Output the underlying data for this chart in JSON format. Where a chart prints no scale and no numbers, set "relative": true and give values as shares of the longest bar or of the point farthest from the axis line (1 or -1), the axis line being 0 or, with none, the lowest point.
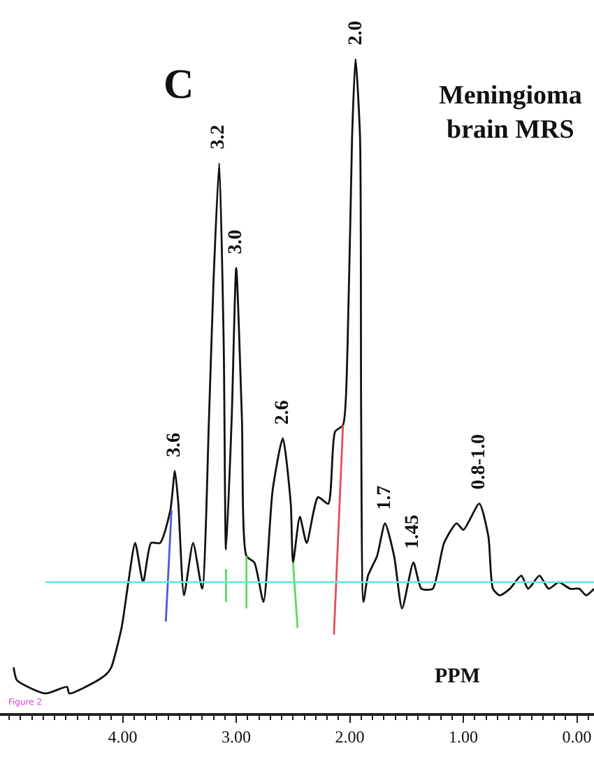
{
  "chart_data": {
    "type": "line",
    "relative": true,
    "title": "C",
    "xlabel": "PPM",
    "xlim": [
      5.08,
      -0.15
    ],
    "xticks": [
      {
        "value": 4,
        "label": "4.00"
      },
      {
        "value": 3,
        "label": "3.00"
      },
      {
        "value": 2,
        "label": "2.00"
      },
      {
        "value": 1,
        "label": "1.00"
      },
      {
        "value": 0,
        "label": "0.00"
      }
    ],
    "series": [
      {
        "color": "#111111",
        "x": [
          4.96,
          4.93,
          4.68,
          4.49,
          4.47,
          4.22,
          4.14,
          4.1,
          4.01,
          3.95,
          3.89,
          3.82,
          3.75,
          3.67,
          3.58,
          3.54,
          3.51,
          3.46,
          3.38,
          3.3,
          3.24,
          3.2,
          3.15,
          3.11,
          3.09,
          3.04,
          3.0,
          2.95,
          2.91,
          2.84,
          2.76,
          2.68,
          2.59,
          2.52,
          2.5,
          2.44,
          2.38,
          2.28,
          2.19,
          2.13,
          2.06,
          2.02,
          1.98,
          1.95,
          1.91,
          1.9,
          1.88,
          1.84,
          1.76,
          1.69,
          1.61,
          1.54,
          1.44,
          1.37,
          1.27,
          1.17,
          1.06,
          1.0,
          0.86,
          0.78,
          0.74,
          0.68,
          0.59,
          0.49,
          0.43,
          0.33,
          0.25,
          0.16,
          0.06,
          -0.02,
          -0.08,
          -0.15
        ],
        "values": [
          0.07,
          0.05,
          0.03,
          0.04,
          0.03,
          0.05,
          0.06,
          0.07,
          0.13,
          0.2,
          0.26,
          0.2,
          0.26,
          0.26,
          0.31,
          0.37,
          0.32,
          0.18,
          0.26,
          0.19,
          0.45,
          0.66,
          0.84,
          0.56,
          0.25,
          0.45,
          0.68,
          0.45,
          0.24,
          0.23,
          0.17,
          0.34,
          0.42,
          0.32,
          0.23,
          0.3,
          0.26,
          0.33,
          0.32,
          0.43,
          0.44,
          0.56,
          0.88,
          1.0,
          0.88,
          0.45,
          0.17,
          0.21,
          0.24,
          0.29,
          0.24,
          0.16,
          0.23,
          0.19,
          0.19,
          0.26,
          0.29,
          0.28,
          0.32,
          0.27,
          0.19,
          0.18,
          0.19,
          0.21,
          0.19,
          0.21,
          0.19,
          0.2,
          0.19,
          0.19,
          0.18,
          0.19
        ]
      },
      {
        "color": "#4a5ad8",
        "x": [
          3.62,
          3.57
        ],
        "values": [
          0.14,
          0.31
        ]
      },
      {
        "color": "#5fd85f",
        "x": [
          3.09,
          3.09
        ],
        "values": [
          0.17,
          0.22
        ]
      },
      {
        "color": "#5fd85f",
        "x": [
          2.91,
          2.91
        ],
        "values": [
          0.16,
          0.24
        ]
      },
      {
        "color": "#5fd85f",
        "x": [
          2.5,
          2.46
        ],
        "values": [
          0.23,
          0.13
        ]
      },
      {
        "color": "#e0505a",
        "x": [
          2.06,
          2.14
        ],
        "values": [
          0.44,
          0.12
        ]
      }
    ],
    "ref_lines": [
      {
        "axis": "y",
        "value": 0.2,
        "color": "#6fe0e0"
      }
    ],
    "annotations": [
      {
        "text": "3.6",
        "x": 3.54,
        "y": 0.37
      },
      {
        "text": "3.2",
        "x": 3.15,
        "y": 0.84
      },
      {
        "text": "3.0",
        "x": 3.0,
        "y": 0.68
      },
      {
        "text": "2.6",
        "x": 2.59,
        "y": 0.42
      },
      {
        "text": "2.0",
        "x": 1.95,
        "y": 1.0
      },
      {
        "text": "1.7",
        "x": 1.69,
        "y": 0.29
      },
      {
        "text": "1.45",
        "x": 1.44,
        "y": 0.23
      },
      {
        "text": "0.8-1.0",
        "x": 0.86,
        "y": 0.32
      },
      "Meningioma brain MRS",
      "Figure 2"
    ],
    "marker": "none",
    "line_style": "solid"
  }
}
